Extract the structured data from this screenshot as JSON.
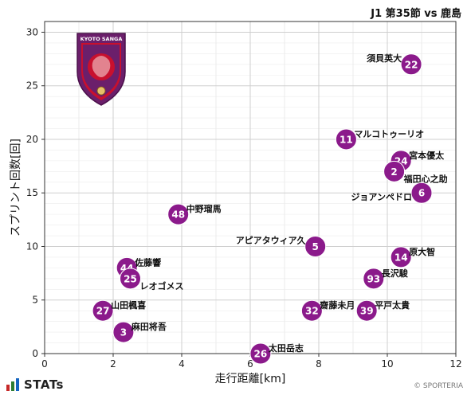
{
  "header": {
    "title": "J1 第35節 vs 鹿島"
  },
  "brand": {
    "logo_text": "STATs",
    "credit": "© SPORTERIA"
  },
  "crest": {
    "text": "KYOTO SANGA"
  },
  "colors": {
    "marker": "#8B1A8B",
    "marker_text": "#ffffff",
    "grid": "#cfcfcf",
    "crest_purple": "#6B1F6B",
    "crest_red": "#C8102E"
  },
  "chart_data": {
    "type": "scatter",
    "xlabel": "走行距離[km]",
    "ylabel": "スプリント回数[回]",
    "xlim": [
      0,
      12
    ],
    "ylim": [
      0,
      31
    ],
    "xticks": [
      "0",
      "2",
      "4",
      "6",
      "8",
      "10",
      "12"
    ],
    "yticks": [
      "0",
      "5",
      "10",
      "15",
      "20",
      "25",
      "30"
    ],
    "grid": true,
    "points": [
      {
        "number": "22",
        "name": "須貝英大",
        "x": 10.7,
        "y": 27,
        "label_side": "left-up"
      },
      {
        "number": "11",
        "name": "マルコトゥーリオ",
        "x": 8.8,
        "y": 20,
        "label_side": "right-up"
      },
      {
        "number": "24",
        "name": "宮本優太",
        "x": 10.4,
        "y": 18,
        "label_side": "right-up"
      },
      {
        "number": "2",
        "name": "福田心之助",
        "x": 10.2,
        "y": 17,
        "label_side": "right-down"
      },
      {
        "number": "6",
        "name": "ジョアンペドロ",
        "x": 11.0,
        "y": 15,
        "label_side": "left-down"
      },
      {
        "number": "48",
        "name": "中野瑠馬",
        "x": 3.9,
        "y": 13,
        "label_side": "right-up"
      },
      {
        "number": "5",
        "name": "アピアタウィア久",
        "x": 7.9,
        "y": 10,
        "label_side": "left-up"
      },
      {
        "number": "14",
        "name": "原大智",
        "x": 10.4,
        "y": 9,
        "label_side": "right-up"
      },
      {
        "number": "44",
        "name": "佐藤響",
        "x": 2.4,
        "y": 8,
        "label_side": "right-up"
      },
      {
        "number": "25",
        "name": "レオゴメス",
        "x": 2.5,
        "y": 7,
        "label_side": "right-down"
      },
      {
        "number": "93",
        "name": "長沢駿",
        "x": 9.6,
        "y": 7,
        "label_side": "right-up"
      },
      {
        "number": "27",
        "name": "山田楓喜",
        "x": 1.7,
        "y": 4,
        "label_side": "right-up"
      },
      {
        "number": "32",
        "name": "齋藤未月",
        "x": 7.8,
        "y": 4,
        "label_side": "right-up"
      },
      {
        "number": "39",
        "name": "平戸太貴",
        "x": 9.4,
        "y": 4,
        "label_side": "right-up"
      },
      {
        "number": "3",
        "name": "麻田将吾",
        "x": 2.3,
        "y": 2,
        "label_side": "right-up"
      },
      {
        "number": "26",
        "name": "太田岳志",
        "x": 6.3,
        "y": 0,
        "label_side": "right-up"
      }
    ]
  }
}
